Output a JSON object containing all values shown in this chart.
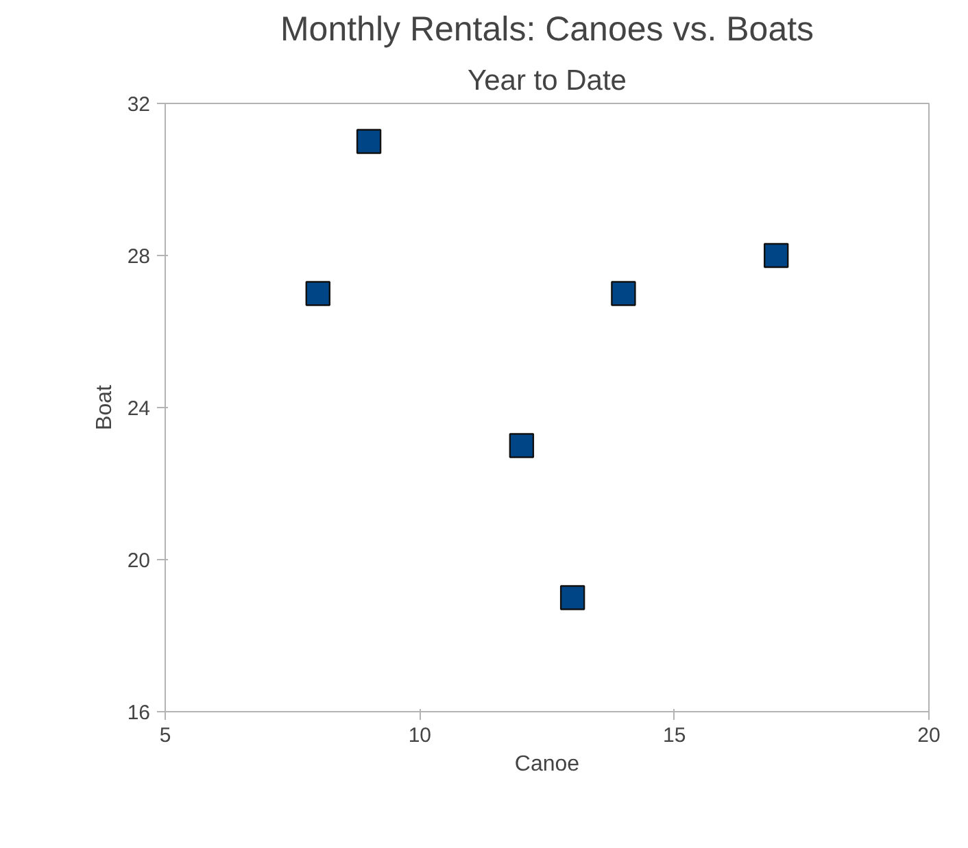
{
  "chart_data": {
    "type": "scatter",
    "title": "Monthly Rentals: Canoes vs. Boats",
    "subtitle": "Year to Date",
    "xlabel": "Canoe",
    "ylabel": "Boat",
    "x": [
      8,
      9,
      12,
      13,
      14,
      17
    ],
    "values": [
      27,
      31,
      23,
      19,
      27,
      28
    ],
    "color": "#004586",
    "marker": "square",
    "xlim": [
      5,
      20
    ],
    "xticks": [
      5,
      10,
      15,
      20
    ],
    "ylim": [
      16,
      32
    ],
    "yticks": [
      16,
      20,
      24,
      28,
      32
    ],
    "grid": false
  }
}
